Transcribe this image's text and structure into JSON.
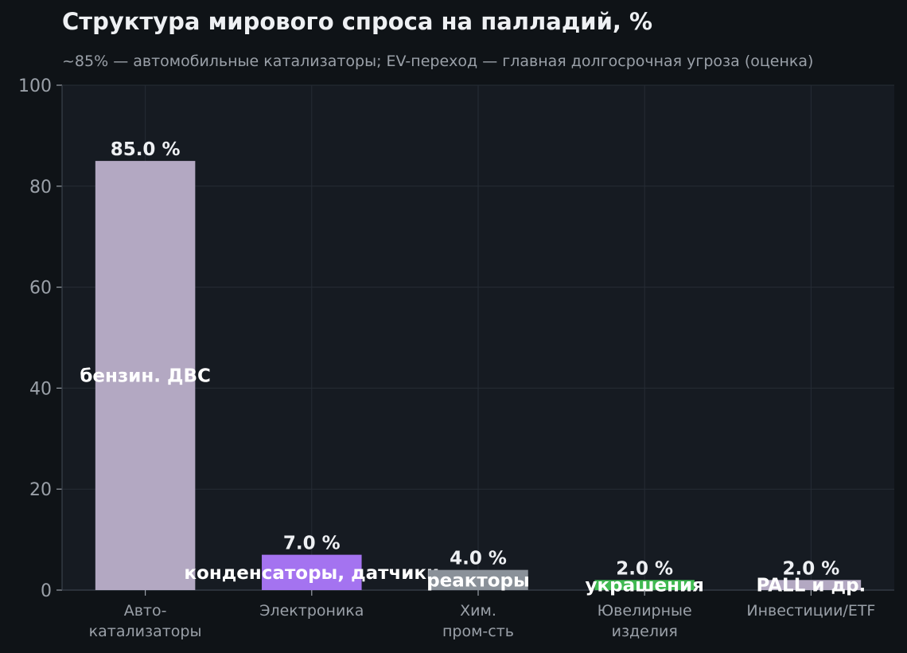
{
  "chart_data": {
    "type": "bar",
    "title": "Структура мирового спроса на палладий, %",
    "subtitle": "~85% — автомобильные катализаторы; EV-переход — главная долгосрочная угроза (оценка)",
    "xlabel": "",
    "ylabel": "",
    "ylim": [
      0,
      100
    ],
    "yticks": [
      0,
      20,
      40,
      60,
      80,
      100
    ],
    "grid": true,
    "categories": [
      [
        "Авто-",
        "катализаторы"
      ],
      [
        "Электроника"
      ],
      [
        "Хим.",
        "пром-сть"
      ],
      [
        "Ювелирные",
        "изделия"
      ],
      [
        "Инвестиции/ETF"
      ]
    ],
    "values": [
      85.0,
      7.0,
      4.0,
      2.0,
      2.0
    ],
    "value_labels": [
      "85.0 %",
      "7.0 %",
      "4.0 %",
      "2.0 %",
      "2.0 %"
    ],
    "bar_annotations": [
      "бензин. ДВС",
      "конденсаторы, датчики",
      "реакторы",
      "украшения",
      "PALL и др."
    ],
    "colors": [
      "#b3a8c2",
      "#a473f0",
      "#8a9199",
      "#3fb950",
      "#b3a8c2"
    ]
  }
}
